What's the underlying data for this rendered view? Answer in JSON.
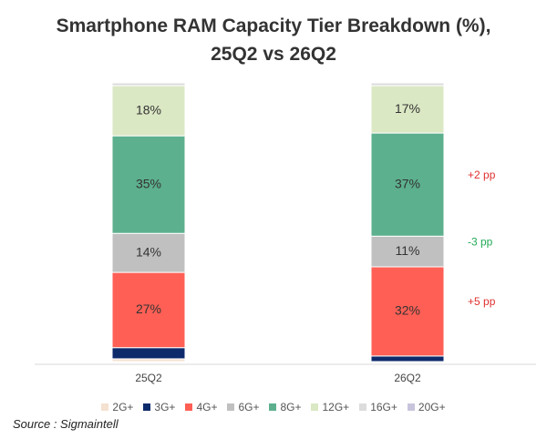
{
  "chart_data": {
    "type": "stacked-bar",
    "title_line1": "Smartphone RAM Capacity Tier Breakdown (%),",
    "title_line2": "25Q2 vs 26Q2",
    "categories": [
      "25Q2",
      "26Q2"
    ],
    "ylim": [
      0,
      100
    ],
    "series": [
      {
        "name": "2G+",
        "color": "#f5e1d0",
        "values": [
          1,
          0
        ]
      },
      {
        "name": "3G+",
        "color": "#0d2a6b",
        "values": [
          4,
          2
        ]
      },
      {
        "name": "4G+",
        "color": "#ff5f55",
        "values": [
          27,
          32
        ]
      },
      {
        "name": "6G+",
        "color": "#c0c0c0",
        "values": [
          14,
          11
        ]
      },
      {
        "name": "8G+",
        "color": "#5cb08e",
        "values": [
          35,
          37
        ]
      },
      {
        "name": "12G+",
        "color": "#dbe8c4",
        "values": [
          18,
          17
        ]
      },
      {
        "name": "16G+",
        "color": "#dcdcdc",
        "values": [
          1,
          1
        ]
      },
      {
        "name": "20G+",
        "color": "#c8c4dc",
        "values": [
          0,
          0
        ]
      }
    ],
    "data_labels": {
      "4G+": [
        "27%",
        "32%"
      ],
      "6G+": [
        "14%",
        "11%"
      ],
      "8G+": [
        "35%",
        "37%"
      ],
      "12G+": [
        "18%",
        "17%"
      ]
    },
    "annotations": [
      {
        "series": "8G+",
        "text": "+2 pp",
        "color": "#e03030"
      },
      {
        "series": "6G+",
        "text": "-3 pp",
        "color": "#22aa55"
      },
      {
        "series": "4G+",
        "text": "+5 pp",
        "color": "#e03030"
      }
    ],
    "legend_position": "bottom",
    "grid": false
  },
  "source": "Source :  Sigmaintell"
}
